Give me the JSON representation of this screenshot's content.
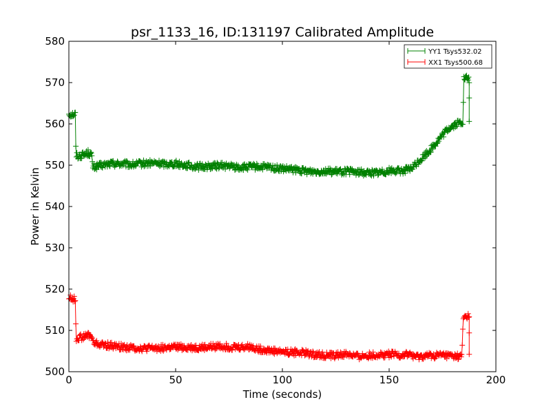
{
  "chart_data": {
    "type": "line",
    "title": "psr_1133_16, ID:131197 Calibrated Amplitude",
    "xlabel": "Time (seconds)",
    "ylabel": "Power in Kelvin",
    "xlim": [
      0,
      200
    ],
    "ylim": [
      500,
      580
    ],
    "xticks": [
      0,
      50,
      100,
      150,
      200
    ],
    "yticks": [
      500,
      510,
      520,
      530,
      540,
      550,
      560,
      570,
      580
    ],
    "grid": false,
    "legend_position": "top-right",
    "marker": "+",
    "series": [
      {
        "name": "YY1 Tsys532.02",
        "color": "#008000",
        "anchors": [
          [
            0.0,
            562.5
          ],
          [
            1.5,
            562.3
          ],
          [
            3.0,
            562.4
          ],
          [
            3.3,
            552.5
          ],
          [
            4.5,
            552.2
          ],
          [
            6.0,
            552.4
          ],
          [
            7.5,
            552.6
          ],
          [
            9.0,
            553.0
          ],
          [
            10.5,
            552.6
          ],
          [
            11.3,
            549.5
          ],
          [
            15.0,
            549.9
          ],
          [
            20.0,
            550.4
          ],
          [
            25.0,
            550.3
          ],
          [
            30.0,
            550.1
          ],
          [
            35.0,
            550.4
          ],
          [
            40.0,
            550.5
          ],
          [
            45.0,
            550.3
          ],
          [
            50.0,
            550.4
          ],
          [
            55.0,
            550.0
          ],
          [
            60.0,
            549.6
          ],
          [
            65.0,
            549.7
          ],
          [
            70.0,
            549.9
          ],
          [
            75.0,
            549.8
          ],
          [
            80.0,
            549.4
          ],
          [
            85.0,
            549.6
          ],
          [
            90.0,
            549.6
          ],
          [
            95.0,
            549.4
          ],
          [
            100.0,
            549.1
          ],
          [
            105.0,
            548.9
          ],
          [
            110.0,
            548.6
          ],
          [
            115.0,
            548.5
          ],
          [
            120.0,
            548.6
          ],
          [
            125.0,
            548.4
          ],
          [
            130.0,
            548.5
          ],
          [
            135.0,
            548.3
          ],
          [
            140.0,
            548.2
          ],
          [
            145.0,
            548.2
          ],
          [
            150.0,
            548.7
          ],
          [
            155.0,
            548.6
          ],
          [
            160.0,
            549.0
          ],
          [
            163.0,
            550.5
          ],
          [
            166.0,
            552.0
          ],
          [
            170.0,
            554.2
          ],
          [
            174.0,
            556.6
          ],
          [
            178.0,
            559.0
          ],
          [
            182.0,
            560.1
          ],
          [
            184.5,
            560.5
          ],
          [
            185.0,
            570.8
          ],
          [
            186.5,
            571.1
          ],
          [
            187.5,
            570.5
          ]
        ],
        "tail": [
          [
            187.5,
            566.3
          ],
          [
            187.5,
            560.6
          ]
        ]
      },
      {
        "name": "XX1 Tsys500.68",
        "color": "#ff0000",
        "anchors": [
          [
            0.0,
            518.0
          ],
          [
            1.5,
            517.7
          ],
          [
            3.0,
            517.4
          ],
          [
            3.3,
            510.4
          ],
          [
            3.5,
            508.0
          ],
          [
            5.0,
            508.3
          ],
          [
            7.0,
            508.4
          ],
          [
            9.0,
            508.9
          ],
          [
            10.5,
            508.6
          ],
          [
            11.5,
            507.0
          ],
          [
            15.0,
            506.5
          ],
          [
            20.0,
            506.3
          ],
          [
            25.0,
            506.0
          ],
          [
            30.0,
            505.8
          ],
          [
            35.0,
            505.6
          ],
          [
            40.0,
            505.7
          ],
          [
            45.0,
            505.8
          ],
          [
            50.0,
            505.9
          ],
          [
            55.0,
            505.9
          ],
          [
            60.0,
            505.8
          ],
          [
            65.0,
            505.9
          ],
          [
            70.0,
            506.2
          ],
          [
            75.0,
            506.0
          ],
          [
            80.0,
            505.9
          ],
          [
            85.0,
            506.0
          ],
          [
            90.0,
            505.4
          ],
          [
            95.0,
            505.1
          ],
          [
            100.0,
            504.9
          ],
          [
            105.0,
            504.7
          ],
          [
            110.0,
            504.6
          ],
          [
            115.0,
            504.2
          ],
          [
            120.0,
            504.0
          ],
          [
            125.0,
            503.9
          ],
          [
            130.0,
            504.3
          ],
          [
            135.0,
            503.7
          ],
          [
            140.0,
            503.9
          ],
          [
            145.0,
            504.1
          ],
          [
            150.0,
            504.2
          ],
          [
            155.0,
            504.0
          ],
          [
            160.0,
            504.2
          ],
          [
            163.0,
            503.5
          ],
          [
            166.0,
            503.7
          ],
          [
            170.0,
            503.9
          ],
          [
            175.0,
            504.0
          ],
          [
            180.0,
            503.7
          ],
          [
            184.0,
            503.6
          ],
          [
            184.8,
            513.2
          ],
          [
            186.5,
            513.6
          ],
          [
            187.5,
            513.4
          ]
        ],
        "tail": [
          [
            187.5,
            509.4
          ],
          [
            187.5,
            504.2
          ]
        ]
      }
    ]
  }
}
